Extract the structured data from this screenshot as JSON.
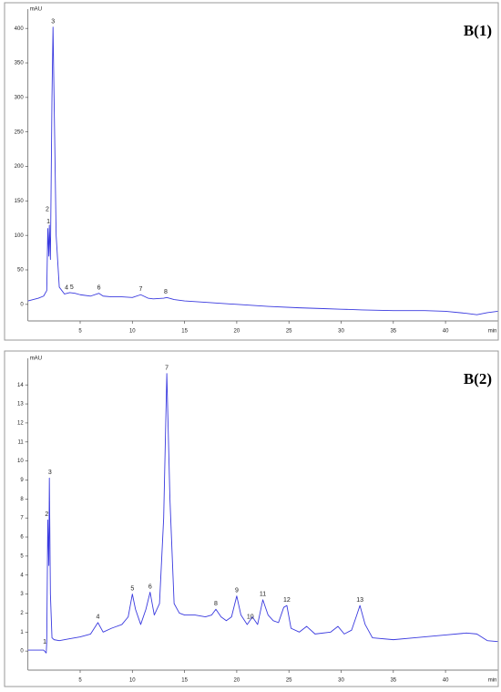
{
  "chart_data": [
    {
      "type": "line",
      "title": "B(1)",
      "ylabel": "mAU",
      "xlabel": "min",
      "color": "#3a3adf",
      "xlim": [
        0,
        45
      ],
      "ylim": [
        -24,
        428
      ],
      "xticks": [
        5,
        10,
        15,
        20,
        25,
        30,
        35,
        40
      ],
      "yticks": [
        0,
        50,
        100,
        150,
        200,
        250,
        300,
        350,
        400
      ],
      "x": [
        0,
        0.5,
        1,
        1.5,
        1.8,
        1.9,
        2.0,
        2.05,
        2.15,
        2.3,
        2.4,
        2.5,
        2.7,
        3,
        3.5,
        4,
        4.5,
        5,
        6,
        6.8,
        7.2,
        8,
        9,
        10,
        10.8,
        11.5,
        12,
        13,
        13.3,
        14,
        15,
        17,
        20,
        23,
        26,
        28,
        30,
        32,
        35,
        38,
        40,
        42,
        43,
        44,
        45
      ],
      "values": [
        5,
        7,
        9,
        12,
        20,
        110,
        70,
        115,
        65,
        300,
        402,
        300,
        100,
        25,
        15,
        17,
        16,
        14,
        12,
        16,
        12,
        11,
        11,
        10,
        14,
        9,
        8,
        9,
        10,
        7,
        5,
        3,
        0,
        -3,
        -5,
        -6,
        -7,
        -8,
        -9,
        -9,
        -10,
        -13,
        -15,
        -12,
        -10
      ],
      "peaks": [
        {
          "label": "1",
          "x": 1.95,
          "y": 112
        },
        {
          "label": "2",
          "x": 1.85,
          "y": 130
        },
        {
          "label": "3",
          "x": 2.4,
          "y": 402
        },
        {
          "label": "4",
          "x": 3.7,
          "y": 16
        },
        {
          "label": "5",
          "x": 4.2,
          "y": 17
        },
        {
          "label": "6",
          "x": 6.8,
          "y": 16
        },
        {
          "label": "7",
          "x": 10.8,
          "y": 14
        },
        {
          "label": "8",
          "x": 13.2,
          "y": 10
        }
      ]
    },
    {
      "type": "line",
      "title": "B(2)",
      "ylabel": "mAU",
      "xlabel": "min",
      "color": "#3a3adf",
      "xlim": [
        0,
        45
      ],
      "ylim": [
        -1,
        15.4
      ],
      "xticks": [
        5,
        10,
        15,
        20,
        25,
        30,
        35,
        40
      ],
      "yticks": [
        0,
        1,
        2,
        3,
        4,
        5,
        6,
        7,
        8,
        9,
        10,
        11,
        12,
        13,
        14
      ],
      "x": [
        0,
        1,
        1.5,
        1.75,
        1.8,
        1.9,
        2.0,
        2.05,
        2.15,
        2.3,
        2.5,
        3,
        4,
        5,
        6,
        6.7,
        7.2,
        8,
        9,
        9.6,
        10,
        10.3,
        10.8,
        11.3,
        11.7,
        12.1,
        12.6,
        13,
        13.3,
        13.6,
        14,
        14.5,
        15,
        16,
        17,
        17.6,
        18,
        18.5,
        19,
        19.5,
        20,
        20.4,
        21,
        21.5,
        22,
        22.5,
        23,
        23.5,
        24,
        24.5,
        24.8,
        25.2,
        26,
        26.7,
        27.5,
        29,
        29.7,
        30.3,
        31,
        31.5,
        31.8,
        32.3,
        33,
        35,
        37,
        40,
        42,
        43,
        44,
        45
      ],
      "values": [
        0.05,
        0.05,
        0.05,
        -0.1,
        0.5,
        6.9,
        4.5,
        9.1,
        3,
        0.7,
        0.6,
        0.55,
        0.65,
        0.75,
        0.9,
        1.5,
        1.0,
        1.2,
        1.4,
        1.8,
        3.0,
        2.2,
        1.4,
        2.2,
        3.1,
        1.9,
        2.5,
        7,
        14.6,
        8,
        2.5,
        2.0,
        1.9,
        1.9,
        1.8,
        1.9,
        2.2,
        1.8,
        1.6,
        1.8,
        2.9,
        1.9,
        1.4,
        1.8,
        1.4,
        2.7,
        1.9,
        1.6,
        1.5,
        2.3,
        2.4,
        1.2,
        1.0,
        1.3,
        0.9,
        1.0,
        1.3,
        0.9,
        1.1,
        1.9,
        2.4,
        1.4,
        0.7,
        0.6,
        0.7,
        0.85,
        0.95,
        0.9,
        0.55,
        0.5
      ],
      "peaks": [
        {
          "label": "1",
          "x": 1.6,
          "y": 0.2
        },
        {
          "label": "2",
          "x": 1.8,
          "y": 6.9
        },
        {
          "label": "3",
          "x": 2.1,
          "y": 9.1
        },
        {
          "label": "4",
          "x": 6.7,
          "y": 1.5
        },
        {
          "label": "5",
          "x": 10,
          "y": 3.0
        },
        {
          "label": "6",
          "x": 11.7,
          "y": 3.1
        },
        {
          "label": "7",
          "x": 13.3,
          "y": 14.6
        },
        {
          "label": "8",
          "x": 18,
          "y": 2.2
        },
        {
          "label": "9",
          "x": 20,
          "y": 2.9
        },
        {
          "label": "10",
          "x": 21.3,
          "y": 1.5
        },
        {
          "label": "11",
          "x": 22.5,
          "y": 2.7
        },
        {
          "label": "12",
          "x": 24.8,
          "y": 2.4
        },
        {
          "label": "13",
          "x": 31.8,
          "y": 2.4
        }
      ]
    }
  ]
}
